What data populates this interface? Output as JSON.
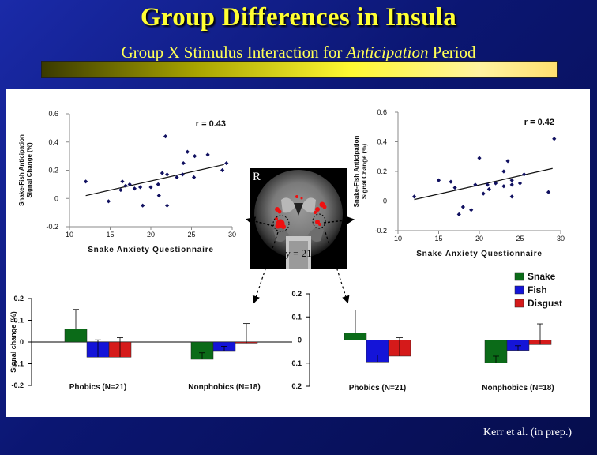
{
  "header": {
    "title": "Group Differences in Insula",
    "subtitle_pre": "Group X Stimulus Interaction for ",
    "subtitle_em": "Anticipation",
    "subtitle_post": " Period"
  },
  "brain": {
    "side_label": "R",
    "slice_label": "y = 21"
  },
  "citation": "Kerr et al. (in prep.)",
  "colors": {
    "snake": "#0b6b18",
    "fish": "#1414d8",
    "disgust": "#d51a1a",
    "point": "#101060"
  },
  "chart_data": [
    {
      "id": "scatter_left",
      "type": "scatter",
      "annotation": "r = 0.43",
      "xlabel": "Snake Anxiety Questionnaire",
      "ylabel_lines": [
        "Snake-Fish Anticipation",
        "Signal Change (%)"
      ],
      "xlim": [
        10,
        30
      ],
      "ylim": [
        -0.2,
        0.6
      ],
      "xticks": [
        10,
        15,
        20,
        25,
        30
      ],
      "yticks": [
        -0.2,
        0,
        0.2,
        0.4,
        0.6
      ],
      "ytick_labels": [
        "-0.2",
        "0",
        "0.2",
        "0.4",
        "0.6"
      ],
      "trendline": [
        [
          12,
          0.02
        ],
        [
          29,
          0.24
        ]
      ],
      "points": [
        [
          12,
          0.12
        ],
        [
          14.8,
          -0.02
        ],
        [
          16.3,
          0.06
        ],
        [
          16.5,
          0.12
        ],
        [
          16.9,
          0.09
        ],
        [
          17.4,
          0.1
        ],
        [
          18,
          0.07
        ],
        [
          18.7,
          0.08
        ],
        [
          19,
          -0.05
        ],
        [
          20,
          0.08
        ],
        [
          20.9,
          0.1
        ],
        [
          21,
          0.02
        ],
        [
          21.4,
          0.18
        ],
        [
          21.8,
          0.44
        ],
        [
          22,
          0.17
        ],
        [
          22,
          -0.05
        ],
        [
          23.2,
          0.15
        ],
        [
          23.9,
          0.17
        ],
        [
          24,
          0.25
        ],
        [
          24.5,
          0.33
        ],
        [
          25.3,
          0.15
        ],
        [
          25.4,
          0.3
        ],
        [
          27,
          0.31
        ],
        [
          28.8,
          0.2
        ],
        [
          29.3,
          0.25
        ]
      ]
    },
    {
      "id": "scatter_right",
      "type": "scatter",
      "annotation": "r = 0.42",
      "xlabel": "Snake Anxiety Questionnaire",
      "ylabel_lines": [
        "Snake-Fish Anticipation",
        "Signal Change (%)"
      ],
      "xlim": [
        10,
        30
      ],
      "ylim": [
        -0.2,
        0.6
      ],
      "xticks": [
        10,
        15,
        20,
        25,
        30
      ],
      "yticks": [
        -0.2,
        0,
        0.2,
        0.4,
        0.6
      ],
      "ytick_labels": [
        "-0.2",
        "0",
        "0.2",
        "0.4",
        "0.6"
      ],
      "trendline": [
        [
          12,
          0.01
        ],
        [
          29,
          0.22
        ]
      ],
      "points": [
        [
          12,
          0.03
        ],
        [
          15,
          0.14
        ],
        [
          16.5,
          0.13
        ],
        [
          17,
          0.09
        ],
        [
          17.5,
          -0.09
        ],
        [
          18,
          -0.04
        ],
        [
          19,
          -0.06
        ],
        [
          19.5,
          0.11
        ],
        [
          20,
          0.29
        ],
        [
          20.5,
          0.05
        ],
        [
          21,
          0.11
        ],
        [
          21.2,
          0.08
        ],
        [
          22,
          0.12
        ],
        [
          23,
          0.1
        ],
        [
          23,
          0.2
        ],
        [
          23.5,
          0.27
        ],
        [
          24,
          0.11
        ],
        [
          24,
          0.14
        ],
        [
          24,
          0.03
        ],
        [
          25,
          0.12
        ],
        [
          25.5,
          0.18
        ],
        [
          28.5,
          0.06
        ],
        [
          29.2,
          0.42
        ]
      ]
    },
    {
      "id": "bar_left",
      "type": "bar",
      "ylabel": "Signal change (%)",
      "ylim": [
        -0.2,
        0.2
      ],
      "yticks": [
        -0.2,
        -0.1,
        0,
        0.1,
        0.2
      ],
      "ytick_labels": [
        "-0.2",
        "-0.1",
        "0",
        "0.1",
        "0.2"
      ],
      "categories": [
        "Phobics (N=21)",
        "Nonphobics (N=18)"
      ],
      "series": [
        {
          "name": "Snake",
          "values": [
            0.06,
            -0.08
          ],
          "err": [
            0.09,
            0.03
          ]
        },
        {
          "name": "Fish",
          "values": [
            -0.07,
            -0.04
          ],
          "err": [
            0.08,
            0.02
          ]
        },
        {
          "name": "Disgust",
          "values": [
            -0.07,
            -0.005
          ],
          "err": [
            0.09,
            0.09
          ]
        }
      ]
    },
    {
      "id": "bar_right",
      "type": "bar",
      "ylabel": "",
      "ylim": [
        -0.2,
        0.2
      ],
      "yticks": [
        -0.2,
        -0.1,
        0,
        0.1,
        0.2
      ],
      "ytick_labels": [
        "-0.2",
        "-0.1",
        "0",
        "0.1",
        "0.2"
      ],
      "categories": [
        "Phobics (N=21)",
        "Nonphobics (N=18)"
      ],
      "legend": [
        "Snake",
        "Fish",
        "Disgust"
      ],
      "series": [
        {
          "name": "Snake",
          "values": [
            0.03,
            -0.1
          ],
          "err": [
            0.1,
            0.03
          ]
        },
        {
          "name": "Fish",
          "values": [
            -0.095,
            -0.045
          ],
          "err": [
            0.03,
            0.02
          ]
        },
        {
          "name": "Disgust",
          "values": [
            -0.07,
            -0.02
          ],
          "err": [
            0.08,
            0.09
          ]
        }
      ]
    }
  ]
}
